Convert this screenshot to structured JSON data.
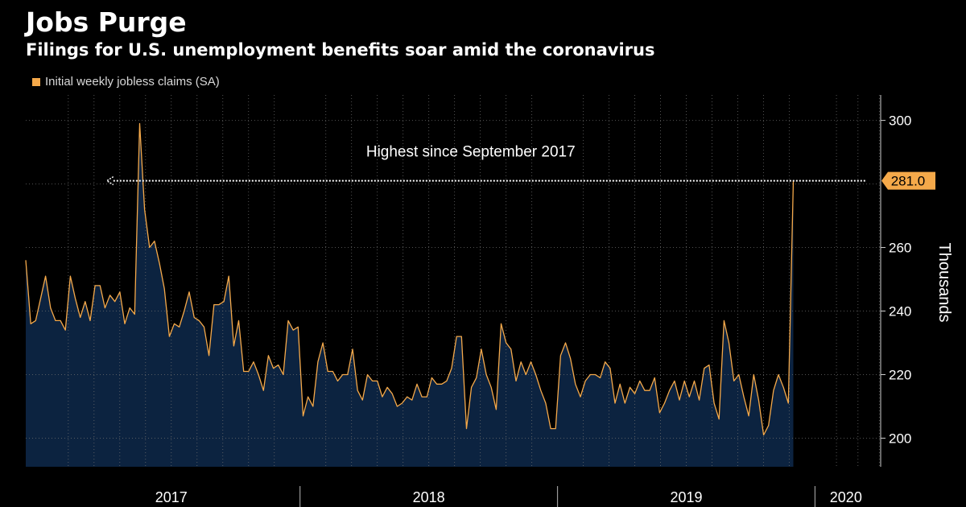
{
  "header": {
    "title": "Jobs Purge",
    "subtitle": "Filings for U.S. unemployment benefits soar amid the coronavirus"
  },
  "colors": {
    "background": "#000000",
    "line": "#f5a94a",
    "area_fill": "#0c2340",
    "grid": "#6e6e6e",
    "axis_text": "#ffffff",
    "callout_bg": "#f5a94a",
    "callout_text": "#000000"
  },
  "chart_data": {
    "type": "area",
    "title": "Jobs Purge",
    "subtitle": "Filings for U.S. unemployment benefits soar amid the coronavirus",
    "xlabel": "",
    "ylabel": "Thousands",
    "ylim": [
      191,
      308
    ],
    "yticks": [
      200,
      220,
      240,
      260,
      300
    ],
    "grid": true,
    "legend_position": "top-left",
    "x_range": [
      2016.935,
      2020.255
    ],
    "year_labels": [
      {
        "label": "2017",
        "x": 2017.5
      },
      {
        "label": "2018",
        "x": 2018.5
      },
      {
        "label": "2019",
        "x": 2019.5
      },
      {
        "label": "2020",
        "x": 2020.12
      }
    ],
    "year_boundaries": [
      2018.0,
      2019.0,
      2020.0
    ],
    "series": [
      {
        "name": "Initial weekly jobless claims (SA)",
        "start": 2016.935,
        "step_weeks": 1,
        "values": [
          256,
          236,
          237,
          244,
          251,
          241,
          237,
          237,
          234,
          251,
          244,
          238,
          243,
          237,
          248,
          248,
          241,
          245,
          243,
          246,
          236,
          241,
          239,
          299,
          272,
          260,
          262,
          255,
          247,
          232,
          236,
          235,
          240,
          246,
          238,
          237,
          235,
          226,
          242,
          242,
          243,
          251,
          229,
          237,
          221,
          221,
          224,
          220,
          215,
          226,
          222,
          223,
          220,
          237,
          234,
          235,
          207,
          213,
          210,
          224,
          230,
          221,
          221,
          218,
          220,
          220,
          228,
          215,
          212,
          220,
          218,
          218,
          213,
          216,
          214,
          210,
          211,
          213,
          212,
          217,
          213,
          213,
          219,
          217,
          217,
          218,
          222,
          232,
          232,
          203,
          216,
          219,
          228,
          220,
          216,
          209,
          236,
          230,
          228,
          218,
          224,
          220,
          224,
          220,
          215,
          211,
          203,
          203,
          226,
          230,
          225,
          217,
          213,
          218,
          220,
          220,
          219,
          224,
          222,
          211,
          217,
          211,
          216,
          214,
          218,
          215,
          215,
          219,
          208,
          211,
          215,
          218,
          212,
          218,
          213,
          218,
          212,
          222,
          223,
          211,
          206,
          237,
          230,
          218,
          220,
          213,
          207,
          220,
          212,
          201,
          204,
          215,
          220,
          216,
          211,
          281
        ]
      }
    ],
    "last_value_label": "281.0",
    "annotations": [
      {
        "text": "Highest since September 2017",
        "from_x": 2020.195,
        "to_x": 2017.25,
        "y": 281
      }
    ]
  }
}
